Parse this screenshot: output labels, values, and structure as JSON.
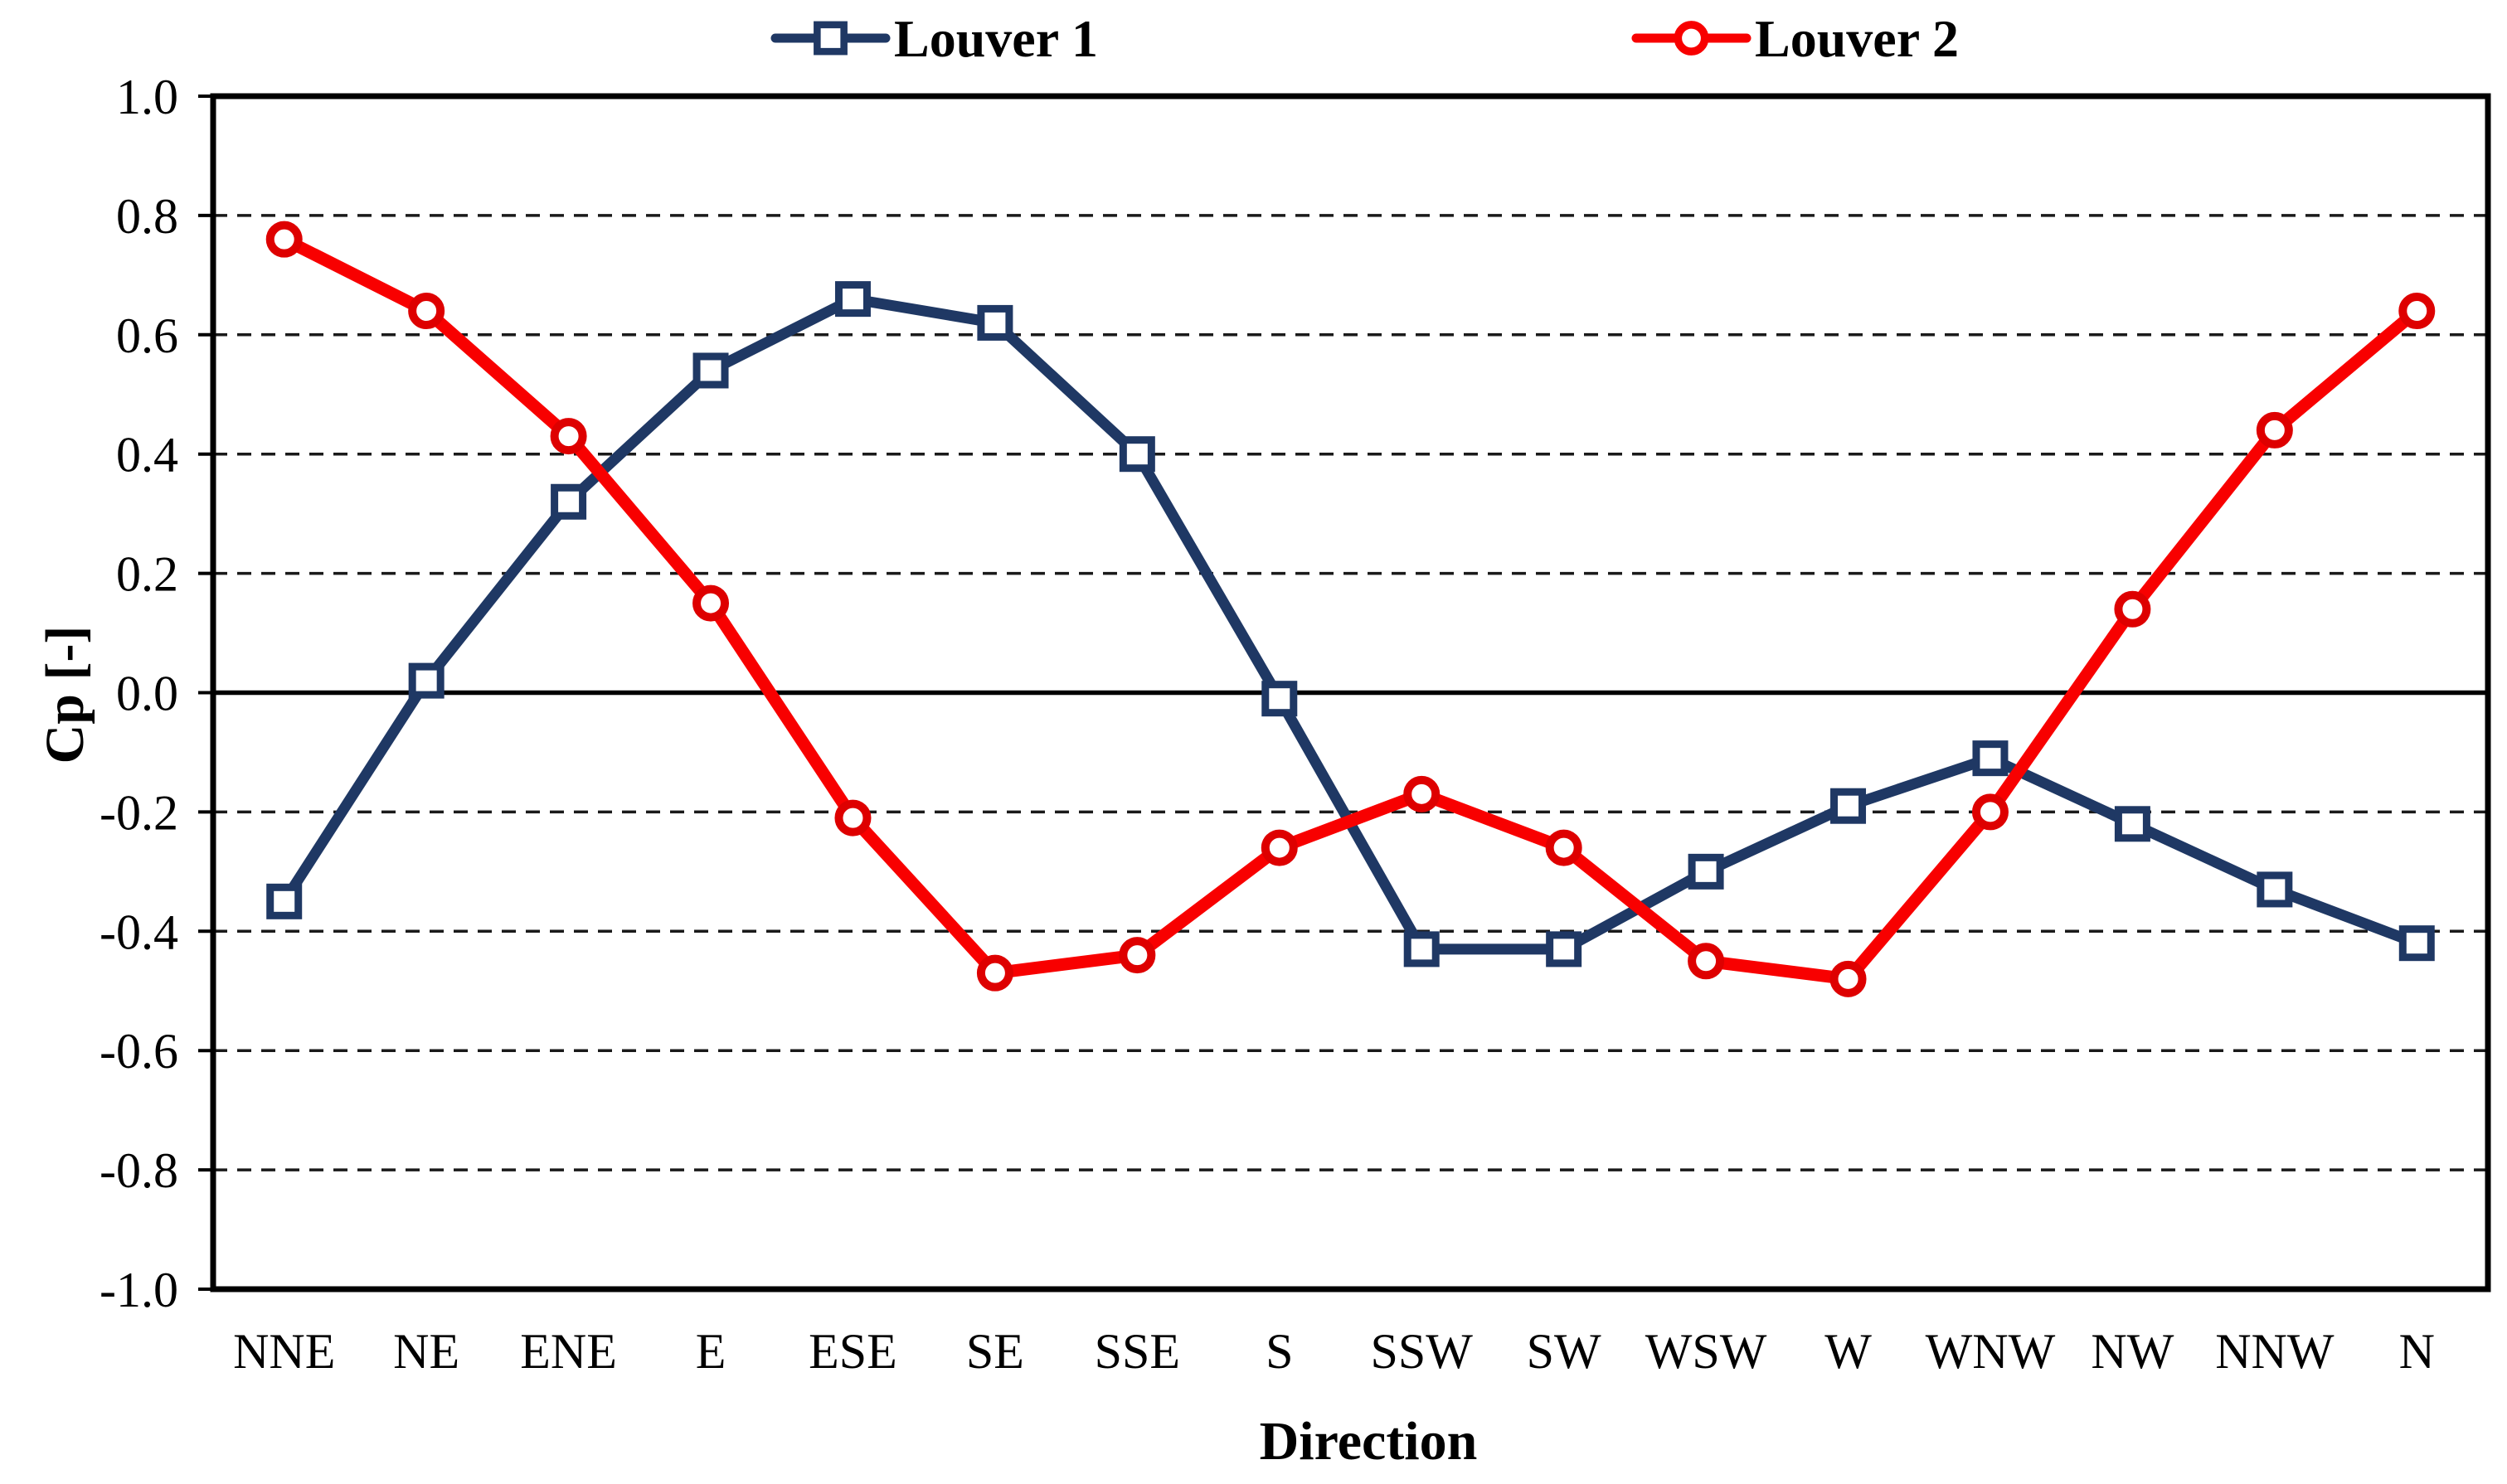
{
  "chart_data": {
    "type": "line",
    "title": "",
    "xlabel": "Direction",
    "ylabel": "Cp [-]",
    "categories": [
      "NNE",
      "NE",
      "ENE",
      "E",
      "ESE",
      "SE",
      "SSE",
      "S",
      "SSW",
      "SW",
      "WSW",
      "W",
      "WNW",
      "NW",
      "NNW",
      "N"
    ],
    "series": [
      {
        "name": "Louver 1",
        "color": "#1F3864",
        "marker": "square",
        "marker_color": "#1F3864",
        "values": [
          -0.35,
          0.02,
          0.32,
          0.54,
          0.66,
          0.62,
          0.4,
          -0.01,
          -0.43,
          -0.43,
          -0.3,
          -0.19,
          -0.11,
          -0.22,
          -0.33,
          -0.42
        ]
      },
      {
        "name": "Louver 2",
        "color": "#F80000",
        "marker": "circle",
        "marker_color": "#DE0000",
        "values": [
          0.76,
          0.64,
          0.43,
          0.15,
          -0.21,
          -0.47,
          -0.44,
          -0.26,
          -0.17,
          -0.26,
          -0.45,
          -0.48,
          -0.2,
          0.14,
          0.44,
          0.64
        ]
      }
    ],
    "ylim": [
      -1.0,
      1.0
    ],
    "y_tick_step": 0.2,
    "y_tick_labels": [
      "1.0",
      "0.8",
      "0.6",
      "0.4",
      "0.2",
      "0.0",
      "-0.2",
      "-0.4",
      "-0.6",
      "-0.8",
      "-1.0"
    ],
    "grid": "horizontal-dashed",
    "zero_line": "solid",
    "legend_position": "top",
    "frame_color": "#000000",
    "grid_color": "#1a1a1a",
    "background_color": "#ffffff"
  }
}
